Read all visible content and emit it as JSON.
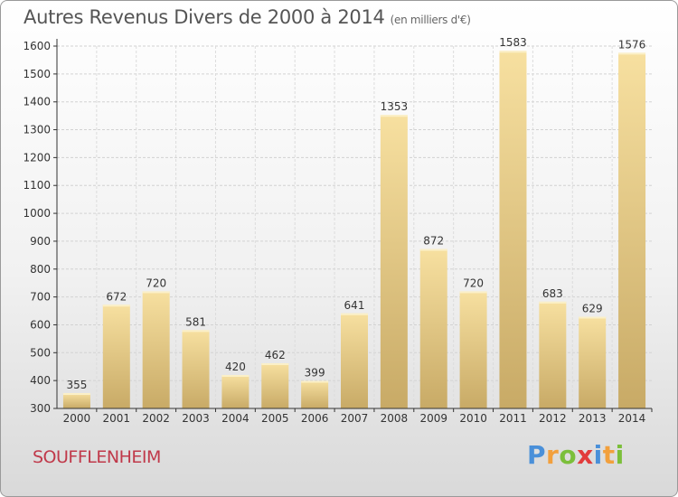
{
  "header": {
    "title": "Autres Revenus Divers de 2000 à 2014",
    "subtitle": "(en milliers d'€)"
  },
  "footer": {
    "city": "SOUFFLENHEIM",
    "logo": [
      "P",
      "r",
      "o",
      "x",
      "i",
      "t",
      "i"
    ]
  },
  "chart_data": {
    "type": "bar",
    "title": "Autres Revenus Divers de 2000 à 2014",
    "subtitle": "(en milliers d'€)",
    "categories": [
      "2000",
      "2001",
      "2002",
      "2003",
      "2004",
      "2005",
      "2006",
      "2007",
      "2008",
      "2009",
      "2010",
      "2011",
      "2012",
      "2013",
      "2014"
    ],
    "values": [
      355,
      672,
      720,
      581,
      420,
      462,
      399,
      641,
      1353,
      872,
      720,
      1583,
      683,
      629,
      1576
    ],
    "ylim": [
      300,
      1600
    ],
    "yticks": [
      300,
      400,
      500,
      600,
      700,
      800,
      900,
      1000,
      1100,
      1200,
      1300,
      1400,
      1500,
      1600
    ],
    "grid": true,
    "colors": {
      "bar_top": "#f7e0a0",
      "bar_bottom": "#c8aa66",
      "axis": "#333333"
    }
  }
}
